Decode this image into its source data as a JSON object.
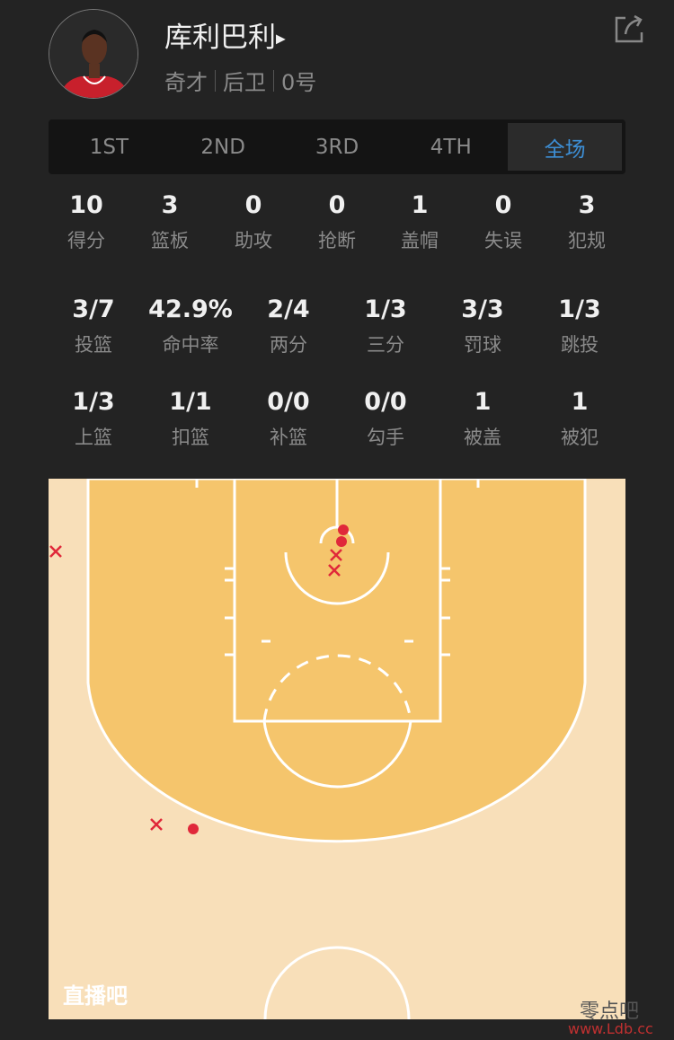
{
  "player": {
    "name": "库利巴利",
    "team": "奇才",
    "position": "后卫",
    "number": "0号"
  },
  "icons": {
    "share": "share-icon",
    "arrow": "play-arrow-icon"
  },
  "tabs": [
    {
      "label": "1ST"
    },
    {
      "label": "2ND"
    },
    {
      "label": "3RD"
    },
    {
      "label": "4TH"
    },
    {
      "label": "全场",
      "active": true
    }
  ],
  "main_stats": [
    {
      "value": "10",
      "label": "得分"
    },
    {
      "value": "3",
      "label": "篮板"
    },
    {
      "value": "0",
      "label": "助攻"
    },
    {
      "value": "0",
      "label": "抢断"
    },
    {
      "value": "1",
      "label": "盖帽"
    },
    {
      "value": "0",
      "label": "失误"
    },
    {
      "value": "3",
      "label": "犯规"
    }
  ],
  "shot_stats": [
    {
      "value": "3/7",
      "label": "投篮"
    },
    {
      "value": "42.9%",
      "label": "命中率"
    },
    {
      "value": "2/4",
      "label": "两分"
    },
    {
      "value": "1/3",
      "label": "三分"
    },
    {
      "value": "3/3",
      "label": "罚球"
    },
    {
      "value": "1/3",
      "label": "跳投"
    }
  ],
  "shot_stats2": [
    {
      "value": "1/3",
      "label": "上篮"
    },
    {
      "value": "1/1",
      "label": "扣篮"
    },
    {
      "value": "0/0",
      "label": "补篮"
    },
    {
      "value": "0/0",
      "label": "勾手"
    },
    {
      "value": "1",
      "label": "被盖"
    },
    {
      "value": "1",
      "label": "被犯"
    }
  ],
  "court": {
    "logo": "直播吧",
    "colors": {
      "paint": "#f5c56c",
      "outside": "#f8dfb9",
      "made": "#e0283a",
      "missed": "#e0283a"
    },
    "shots": [
      {
        "result": "missed"
      },
      {
        "result": "made"
      },
      {
        "result": "made"
      },
      {
        "result": "missed"
      },
      {
        "result": "missed"
      },
      {
        "result": "missed"
      },
      {
        "result": "made"
      }
    ]
  },
  "watermark": {
    "text": "零点吧",
    "url": "www.Ldb.cc"
  }
}
